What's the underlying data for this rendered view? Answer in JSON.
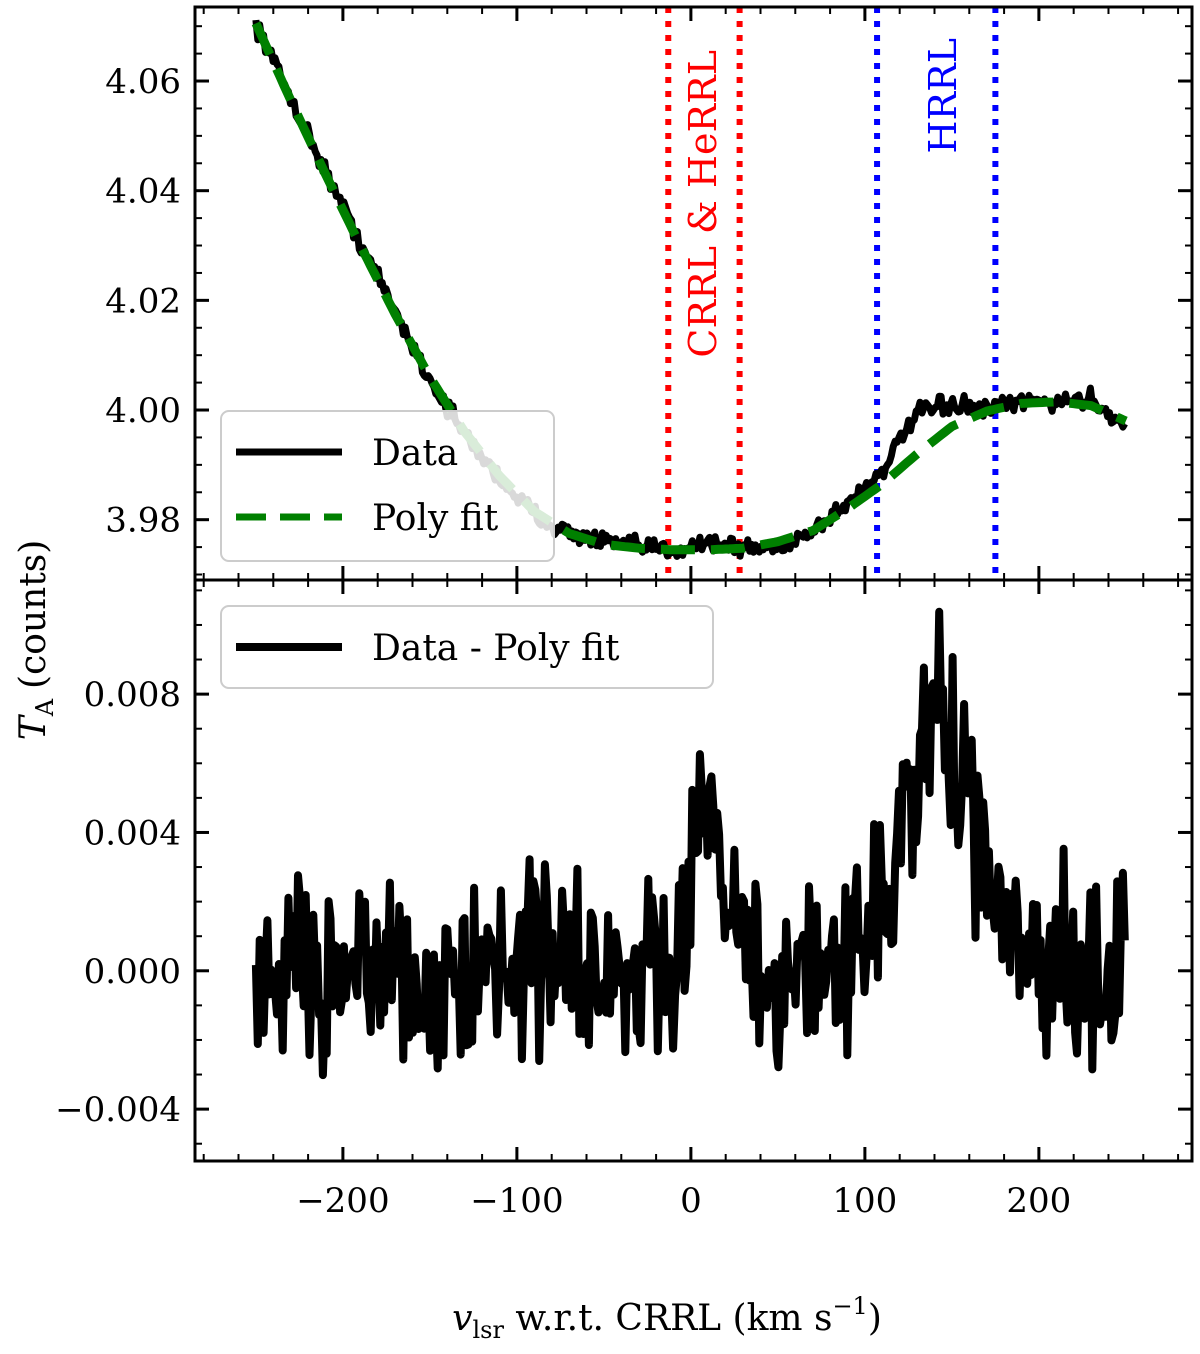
{
  "chart_data": [
    {
      "type": "line",
      "panel": "top",
      "x": [
        -250,
        -230,
        -210,
        -190,
        -170,
        -150,
        -130,
        -110,
        -90,
        -70,
        -50,
        -30,
        -10,
        10,
        30,
        50,
        70,
        90,
        110,
        130,
        150,
        170,
        190,
        210,
        230,
        250
      ],
      "series": [
        {
          "name": "Data",
          "color": "#000000",
          "values": [
            4.0705,
            4.057,
            4.0435,
            4.0305,
            4.018,
            4.0055,
            3.9955,
            3.9875,
            3.981,
            3.9775,
            3.976,
            3.975,
            3.9745,
            3.976,
            3.9748,
            3.975,
            3.978,
            3.983,
            3.989,
            3.9995,
            4.001,
            4.0,
            4.0015,
            4.0015,
            4.002,
            3.997
          ]
        },
        {
          "name": "Poly fit",
          "color": "#008000",
          "values": [
            4.0705,
            4.0565,
            4.043,
            4.03,
            4.0175,
            4.006,
            3.996,
            3.988,
            3.9815,
            3.9775,
            3.9755,
            3.9748,
            3.9745,
            3.9745,
            3.9748,
            3.976,
            3.978,
            3.982,
            3.9865,
            3.992,
            3.997,
            3.9998,
            4.0012,
            4.0015,
            4.0008,
            3.998
          ]
        }
      ],
      "regions": [
        {
          "label": "CRRL & HeRRL",
          "start": -13,
          "end": 28,
          "color": "#ff0000"
        },
        {
          "label": "HRRL",
          "start": 107,
          "end": 175,
          "color": "#0000ff"
        }
      ],
      "yticks": [
        "3.98",
        "4.00",
        "4.02",
        "4.04",
        "4.06"
      ],
      "ylim": [
        3.969,
        4.0735
      ],
      "xlim": [
        -285,
        288
      ]
    },
    {
      "type": "line",
      "panel": "bottom",
      "x": [
        -250,
        -230,
        -210,
        -190,
        -170,
        -150,
        -130,
        -110,
        -90,
        -70,
        -50,
        -30,
        -10,
        0,
        10,
        20,
        30,
        50,
        70,
        90,
        110,
        120,
        130,
        140,
        150,
        160,
        170,
        190,
        210,
        230,
        250
      ],
      "series": [
        {
          "name": "Data - Poly fit",
          "color": "#000000",
          "values": [
            0.0,
            0.0005,
            -0.0002,
            0.0004,
            0.0,
            -0.0003,
            0.0005,
            0.0003,
            0.0006,
            0.0002,
            0.0,
            -0.0004,
            0.0005,
            0.0025,
            0.006,
            0.0015,
            0.0,
            -0.0008,
            0.0002,
            0.0006,
            0.0018,
            0.0035,
            0.0058,
            0.0072,
            0.0062,
            0.0048,
            0.0025,
            0.0008,
            0.0002,
            -0.0004,
            0.0003
          ]
        }
      ],
      "yticks": [
        "−0.004",
        "0.000",
        "0.004",
        "0.008"
      ],
      "ylim": [
        -0.0055,
        0.0113
      ],
      "xlim": [
        -285,
        288
      ]
    }
  ],
  "xticks": [
    "−200",
    "−100",
    "0",
    "100",
    "200"
  ],
  "xtick_values": [
    -200,
    -100,
    0,
    100,
    200
  ],
  "ylabel_text": "(counts)",
  "ylabel_symbol": "T",
  "ylabel_sub": "A",
  "xlabel": {
    "symbol": "v",
    "sub": "lsr",
    "text": " w.r.t. CRRL (km s",
    "sup": "−1",
    "close": ")"
  },
  "legend_top": [
    "Data",
    "Poly fit"
  ],
  "legend_bottom": [
    "Data - Poly fit"
  ]
}
